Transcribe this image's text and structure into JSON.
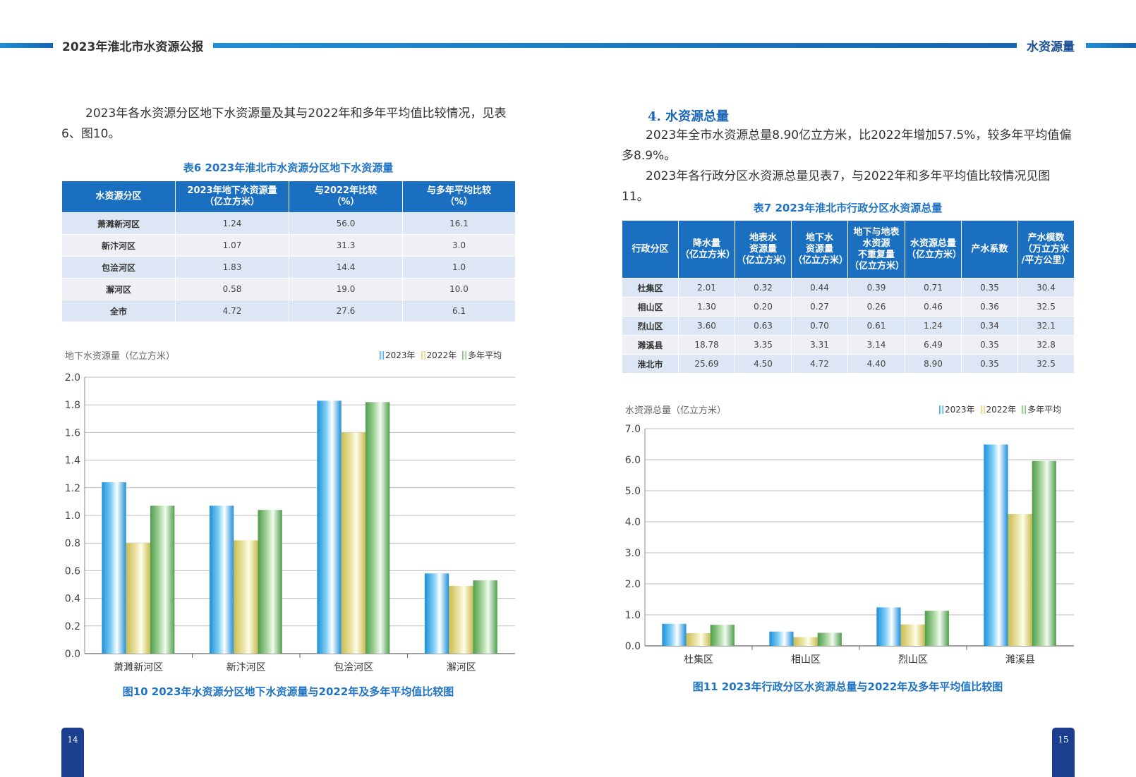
{
  "header": {
    "report_title": "2023年淮北市水资源公报",
    "section_name": "水资源量"
  },
  "left": {
    "intro_line1": "2023年各水资源分区地下水资源量及其与2022年和多年平均值比较情况，见表",
    "intro_line2": "6、图10。",
    "table6": {
      "caption": "表6  2023年淮北市水资源分区地下水资源量",
      "headers": [
        "水资源分区",
        "2023年地下水资源量（亿立方米）",
        "与2022年比较（%）",
        "与多年平均比较（%）"
      ],
      "rows": [
        [
          "萧濉新河区",
          "1.24",
          "56.0",
          "16.1"
        ],
        [
          "新汴河区",
          "1.07",
          "31.3",
          "3.0"
        ],
        [
          "包浍河区",
          "1.83",
          "14.4",
          "1.0"
        ],
        [
          "澥河区",
          "0.58",
          "19.0",
          "10.0"
        ],
        [
          "全市",
          "4.72",
          "27.6",
          "6.1"
        ]
      ]
    },
    "figure10": {
      "caption": "图10  2023年水资源分区地下水资源量与2022年及多年平均值比较图",
      "ytitle": "地下水资源量（亿立方米）"
    }
  },
  "right": {
    "section_title": "4. 水资源总量",
    "para1_line1": "2023年全市水资源总量8.90亿立方米，比2022年增加57.5%，较多年平均值偏",
    "para1_line2": "多8.9%。",
    "para2": "2023年各行政分区水资源总量见表7，与2022年和多年平均值比较情况见图11。",
    "table7": {
      "caption": "表7  2023年淮北市行政分区水资源总量",
      "headers": [
        "行政分区",
        "降水量（亿立方米）",
        "地表水资源量（亿立方米）",
        "地下水资源量（亿立方米）",
        "地下与地表水资源不重复量（亿立方米）",
        "水资源总量（亿立方米）",
        "产水系数",
        "产水模数（万立方米/平方公里）"
      ],
      "rows": [
        [
          "杜集区",
          "2.01",
          "0.32",
          "0.44",
          "0.39",
          "0.71",
          "0.35",
          "30.4"
        ],
        [
          "相山区",
          "1.30",
          "0.20",
          "0.27",
          "0.26",
          "0.46",
          "0.36",
          "32.5"
        ],
        [
          "烈山区",
          "3.60",
          "0.63",
          "0.70",
          "0.61",
          "1.24",
          "0.34",
          "32.1"
        ],
        [
          "濉溪县",
          "18.78",
          "3.35",
          "3.31",
          "3.14",
          "6.49",
          "0.35",
          "32.8"
        ],
        [
          "淮北市",
          "25.69",
          "4.50",
          "4.72",
          "4.40",
          "8.90",
          "0.35",
          "32.5"
        ]
      ]
    },
    "figure11": {
      "caption": "图11  2023年行政分区水资源总量与2022年及多年平均值比较图",
      "ytitle": "水资源总量（亿立方米）"
    }
  },
  "colors": {
    "s2023": "#2aa6e6",
    "s2022": "#d9cf72",
    "savg": "#74b56a",
    "header_blue": "#1a6fc0"
  },
  "chart_data": [
    {
      "type": "bar",
      "title": "图10  2023年水资源分区地下水资源量与2022年及多年平均值比较图",
      "xlabel": "",
      "ylabel": "地下水资源量（亿立方米）",
      "categories": [
        "萧濉新河区",
        "新汴河区",
        "包浍河区",
        "澥河区"
      ],
      "series": [
        {
          "name": "2023年",
          "values": [
            1.24,
            1.07,
            1.83,
            0.58
          ]
        },
        {
          "name": "2022年",
          "values": [
            0.8,
            0.82,
            1.6,
            0.49
          ]
        },
        {
          "name": "多年平均",
          "values": [
            1.07,
            1.04,
            1.82,
            0.53
          ]
        }
      ],
      "ylim": [
        0,
        2.0
      ],
      "yticks": [
        "0.0",
        "0.2",
        "0.4",
        "0.6",
        "0.8",
        "1.0",
        "1.2",
        "1.4",
        "1.6",
        "1.8",
        "2.0"
      ],
      "grid": true,
      "legend": "top-right"
    },
    {
      "type": "bar",
      "title": "图11  2023年行政分区水资源总量与2022年及多年平均值比较图",
      "xlabel": "",
      "ylabel": "水资源总量（亿立方米）",
      "categories": [
        "杜集区",
        "相山区",
        "烈山区",
        "濉溪县"
      ],
      "series": [
        {
          "name": "2023年",
          "values": [
            0.71,
            0.46,
            1.24,
            6.49
          ]
        },
        {
          "name": "2022年",
          "values": [
            0.41,
            0.28,
            0.69,
            4.25
          ]
        },
        {
          "name": "多年平均",
          "values": [
            0.68,
            0.42,
            1.13,
            5.96
          ]
        }
      ],
      "ylim": [
        0,
        7.0
      ],
      "yticks": [
        "0.0",
        "1.0",
        "2.0",
        "3.0",
        "4.0",
        "5.0",
        "6.0",
        "7.0"
      ],
      "grid": true,
      "legend": "top-right"
    }
  ],
  "page_numbers": {
    "left": "14",
    "right": "15"
  }
}
